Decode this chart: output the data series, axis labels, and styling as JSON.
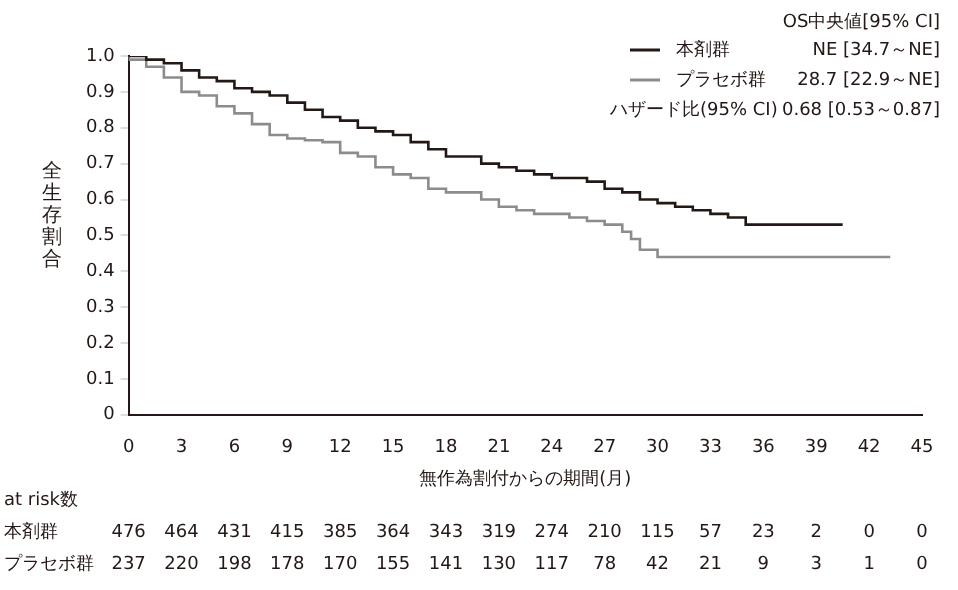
{
  "chart_data": {
    "type": "step",
    "ylabel": "全生存割合",
    "xlabel": "無作為割付からの期間(月)",
    "series": [
      {
        "name": "本剤群",
        "color": "#231815",
        "x": [
          0,
          1,
          2,
          3,
          4,
          5,
          6,
          7,
          8,
          9,
          10,
          11,
          12,
          13,
          14,
          15,
          16,
          17,
          18,
          19,
          20,
          21,
          22,
          23,
          24,
          25,
          26,
          27,
          28,
          29,
          30,
          31,
          32,
          33,
          34,
          35,
          36,
          37,
          38,
          39,
          40.5
        ],
        "values": [
          1.0,
          1.0,
          0.99,
          0.98,
          0.96,
          0.94,
          0.93,
          0.91,
          0.9,
          0.89,
          0.87,
          0.85,
          0.83,
          0.82,
          0.8,
          0.79,
          0.78,
          0.76,
          0.74,
          0.72,
          0.72,
          0.7,
          0.69,
          0.68,
          0.67,
          0.66,
          0.66,
          0.65,
          0.63,
          0.62,
          0.6,
          0.59,
          0.58,
          0.57,
          0.56,
          0.55,
          0.53,
          0.53,
          0.53,
          0.53,
          0.53
        ]
      },
      {
        "name": "プラセボ群",
        "color": "#8c8c8c",
        "x": [
          0,
          1,
          2,
          3,
          4,
          5,
          6,
          7,
          8,
          9,
          10,
          11,
          12,
          13,
          14,
          15,
          16,
          17,
          18,
          19,
          20,
          21,
          22,
          23,
          24,
          25,
          26,
          27,
          28,
          28.5,
          29,
          29.5,
          30,
          31,
          33,
          36,
          39,
          43.2
        ],
        "values": [
          1.0,
          0.99,
          0.97,
          0.94,
          0.9,
          0.89,
          0.86,
          0.84,
          0.81,
          0.78,
          0.77,
          0.765,
          0.76,
          0.73,
          0.72,
          0.69,
          0.67,
          0.66,
          0.63,
          0.62,
          0.62,
          0.6,
          0.58,
          0.57,
          0.56,
          0.56,
          0.55,
          0.54,
          0.53,
          0.51,
          0.49,
          0.46,
          0.46,
          0.44,
          0.44,
          0.44,
          0.44,
          0.44
        ]
      }
    ],
    "xlim": [
      0,
      45
    ],
    "xticks": [
      0,
      3,
      6,
      9,
      12,
      15,
      18,
      21,
      24,
      27,
      30,
      33,
      36,
      39,
      42,
      45
    ],
    "ylim": [
      0,
      1
    ],
    "yticks": [
      0,
      0.1,
      0.2,
      0.3,
      0.4,
      0.5,
      0.6,
      0.7,
      0.8,
      0.9,
      {
        "value": 1,
        "label": "1.0"
      }
    ],
    "grid": false,
    "legend": "top right",
    "line_style": "solid",
    "marker": "none",
    "annotations": [
      "OS中央値[95% CI]",
      "NE [34.7～NE]",
      "28.7 [22.9～NE]",
      "ハザード比(95% CI)",
      "0.68 [0.53～0.87]",
      "at risk数",
      "476 464 431 415 385 364 343 319 274 210 115 57 23 2 0 0",
      "237 220 198 178 170 155 141 130 117 78 42 21 9 3 1 0"
    ]
  }
}
